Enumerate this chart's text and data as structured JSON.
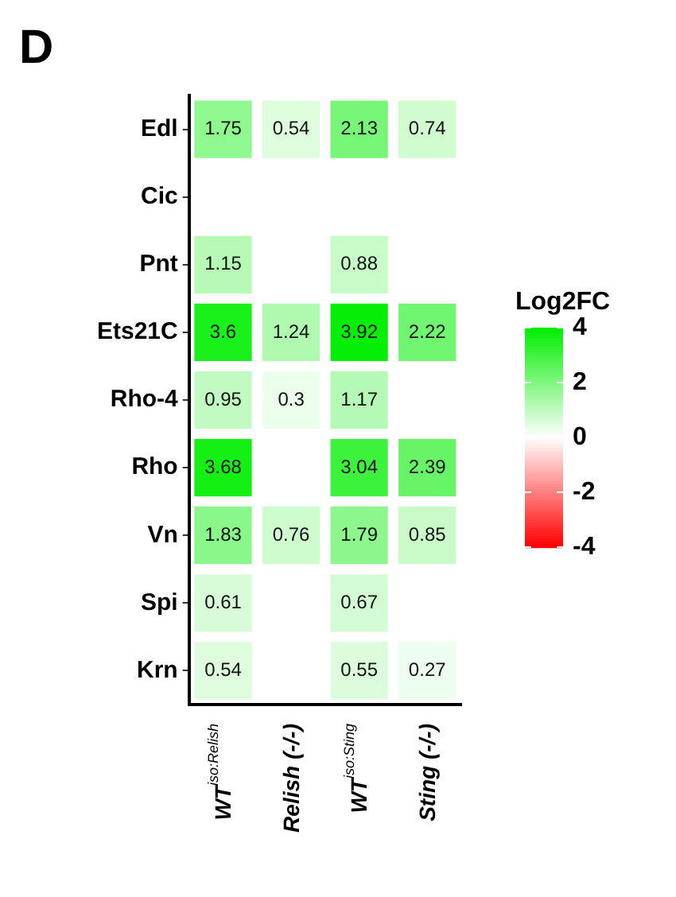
{
  "chart_data": {
    "type": "heatmap",
    "title": "D",
    "clabel": "Log2FC",
    "categories": [
      "WT$^{iso:Relish}$",
      "Relish (-/-)",
      "WT$^{iso:Sting}$",
      "Sting (-/-)"
    ],
    "y_categories": [
      "Edl",
      "Cic",
      "Pnt",
      "Ets21C",
      "Rho-4",
      "Rho",
      "Vn",
      "Spi",
      "Krn"
    ],
    "cells": [
      [
        1.75,
        0.54,
        2.13,
        0.74
      ],
      [
        null,
        null,
        null,
        null
      ],
      [
        1.15,
        null,
        0.88,
        null
      ],
      [
        3.6,
        1.24,
        3.92,
        2.22
      ],
      [
        0.95,
        0.3,
        1.17,
        null
      ],
      [
        3.68,
        null,
        3.04,
        2.39
      ],
      [
        1.83,
        0.76,
        1.79,
        0.85
      ],
      [
        0.61,
        null,
        0.67,
        null
      ],
      [
        0.54,
        null,
        0.55,
        0.27
      ]
    ],
    "clim": [
      -4,
      4
    ],
    "cticks": [
      -4,
      -2,
      0,
      2,
      4
    ],
    "data_labels": true
  }
}
